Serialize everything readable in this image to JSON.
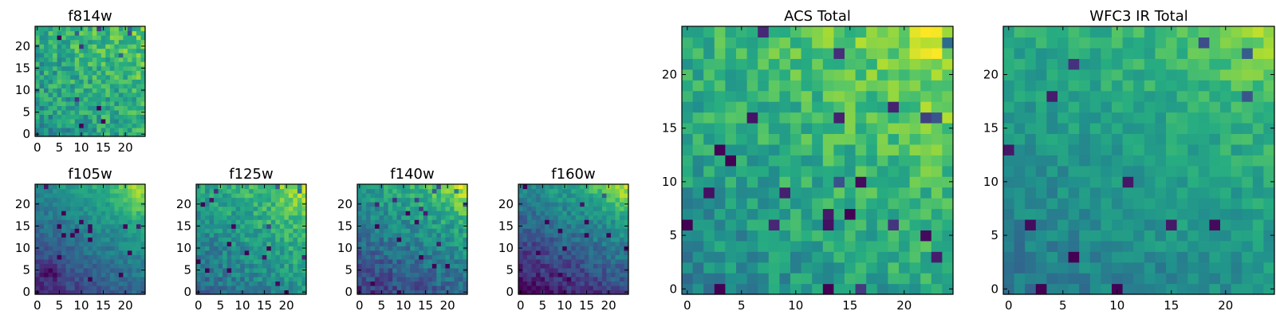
{
  "chart_data": [
    {
      "type": "heatmap",
      "title": "f814w",
      "grid_size": 25,
      "xlim": [
        0,
        25
      ],
      "ylim": [
        0,
        25
      ],
      "xticks": [
        0,
        5,
        10,
        15,
        20
      ],
      "yticks": [
        0,
        5,
        10,
        15,
        20
      ],
      "colormap": "viridis",
      "field": {
        "base": 0.62,
        "gradient_x": 0.06,
        "gradient_y": 0.06,
        "noise": 0.32,
        "seed": 11
      }
    },
    {
      "type": "heatmap",
      "title": "f105w",
      "grid_size": 25,
      "xlim": [
        0,
        25
      ],
      "ylim": [
        0,
        25
      ],
      "xticks": [
        0,
        5,
        10,
        15,
        20
      ],
      "yticks": [
        0,
        5,
        10,
        15,
        20
      ],
      "colormap": "viridis",
      "field": {
        "base": 0.42,
        "gradient_x": 0.12,
        "gradient_y": 0.18,
        "corner_boost": 0.5,
        "low_spot": [
          3,
          5
        ],
        "noise": 0.16,
        "seed": 23
      }
    },
    {
      "type": "heatmap",
      "title": "f125w",
      "grid_size": 25,
      "xlim": [
        0,
        25
      ],
      "ylim": [
        0,
        25
      ],
      "xticks": [
        0,
        5,
        10,
        15,
        20
      ],
      "yticks": [
        0,
        5,
        10,
        15,
        20
      ],
      "colormap": "viridis",
      "field": {
        "base": 0.55,
        "gradient_x": 0.1,
        "gradient_y": 0.12,
        "corner_boost": 0.35,
        "noise": 0.24,
        "seed": 37
      }
    },
    {
      "type": "heatmap",
      "title": "f140w",
      "grid_size": 25,
      "xlim": [
        0,
        25
      ],
      "ylim": [
        0,
        25
      ],
      "xticks": [
        0,
        5,
        10,
        15,
        20
      ],
      "yticks": [
        0,
        5,
        10,
        15,
        20
      ],
      "colormap": "viridis",
      "field": {
        "base": 0.45,
        "gradient_x": 0.1,
        "gradient_y": 0.2,
        "corner_boost": 0.45,
        "noise": 0.24,
        "seed": 41
      }
    },
    {
      "type": "heatmap",
      "title": "f160w",
      "grid_size": 25,
      "xlim": [
        0,
        25
      ],
      "ylim": [
        0,
        25
      ],
      "xticks": [
        0,
        5,
        10,
        15,
        20
      ],
      "yticks": [
        0,
        5,
        10,
        15,
        20
      ],
      "colormap": "viridis",
      "field": {
        "base": 0.36,
        "gradient_x": 0.12,
        "gradient_y": 0.24,
        "corner_boost": 0.55,
        "noise": 0.2,
        "seed": 53
      }
    },
    {
      "type": "heatmap",
      "title": "ACS Total",
      "grid_size": 25,
      "xlim": [
        0,
        25
      ],
      "ylim": [
        0,
        25
      ],
      "xticks": [
        0,
        5,
        10,
        15,
        20
      ],
      "yticks": [
        0,
        5,
        10,
        15,
        20
      ],
      "colormap": "viridis",
      "field": {
        "base": 0.64,
        "gradient_x": 0.08,
        "gradient_y": 0.1,
        "corner_boost": 0.3,
        "noise": 0.26,
        "seed": 67
      }
    },
    {
      "type": "heatmap",
      "title": "WFC3 IR Total",
      "grid_size": 25,
      "xlim": [
        0,
        25
      ],
      "ylim": [
        0,
        25
      ],
      "xticks": [
        0,
        5,
        10,
        15,
        20
      ],
      "yticks": [
        0,
        5,
        10,
        15,
        20
      ],
      "colormap": "viridis",
      "field": {
        "base": 0.56,
        "gradient_x": 0.06,
        "gradient_y": 0.1,
        "corner_boost": 0.35,
        "noise": 0.18,
        "seed": 79
      }
    }
  ]
}
